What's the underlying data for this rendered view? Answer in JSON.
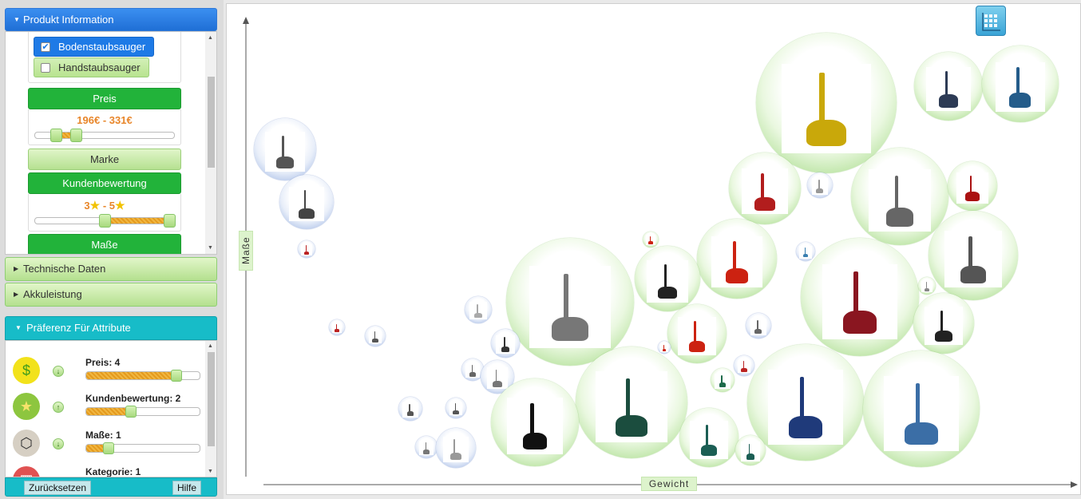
{
  "produkt_information": {
    "header": "Produkt Information",
    "kategorie": [
      {
        "label": "Bodenstaubsauger",
        "checked": true
      },
      {
        "label": "Handstaubsauger",
        "checked": false
      }
    ],
    "preis": {
      "label": "Preis",
      "range_text": "196€ - 331€"
    },
    "marke": {
      "label": "Marke"
    },
    "kundenbewertung": {
      "label": "Kundenbewertung",
      "from": "3",
      "to": "5",
      "dash": "-"
    },
    "masse": {
      "label": "Maße"
    }
  },
  "technische_daten": {
    "header": "Technische Daten"
  },
  "akkuleistung": {
    "header": "Akkuleistung"
  },
  "praeferenz": {
    "header": "Präferenz Für Attribute",
    "items": [
      {
        "label": "Preis: 4",
        "value": 4,
        "icon": "money-bag-icon",
        "arrow": "down"
      },
      {
        "label": "Kundenbewertung: 2",
        "value": 2,
        "icon": "star-icon",
        "arrow": "up"
      },
      {
        "label": "Maße: 1",
        "value": 1,
        "icon": "box-icon",
        "arrow": "down"
      },
      {
        "label": "Kategorie: 1",
        "value": 1,
        "icon": "category-icon",
        "arrow": "down"
      }
    ],
    "reset_label": "Zurücksetzen",
    "help_label": "Hilfe"
  },
  "chart": {
    "x_axis_label": "Gewicht",
    "y_axis_label": "Maße"
  },
  "colors": {
    "primary_blue": "#1e7ae6",
    "filter_green": "#22b33a",
    "preference_teal": "#17bcc8",
    "price_orange": "#e8862a"
  }
}
